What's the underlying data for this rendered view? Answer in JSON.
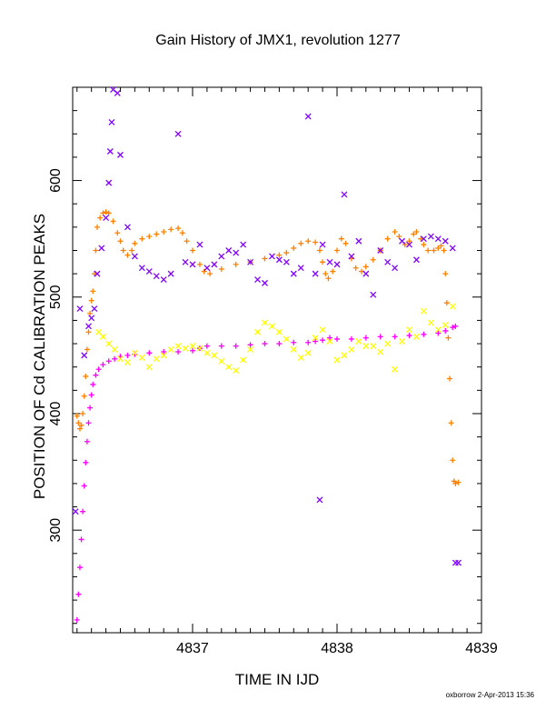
{
  "chart_data": {
    "type": "scatter",
    "title": "Gain History of JMX1, revolution 1277",
    "xlabel": "TIME IN IJD",
    "ylabel": "POSITION OF Cd CALIBRATION PEAKS",
    "xlim": [
      4836.17,
      4839.0
    ],
    "ylim": [
      212,
      680
    ],
    "x_ticks": [
      4837,
      4838,
      4839
    ],
    "y_ticks": [
      300,
      400,
      500,
      600
    ],
    "x_tick_labels": [
      "4837",
      "4838",
      "4839"
    ],
    "y_tick_labels": [
      "300",
      "400",
      "500",
      "600"
    ],
    "grid": false,
    "legend": "none",
    "series": [
      {
        "color": "#ff00ff",
        "marker": "plus",
        "points": [
          [
            4836.2,
            223
          ],
          [
            4836.21,
            245
          ],
          [
            4836.22,
            268
          ],
          [
            4836.23,
            292
          ],
          [
            4836.24,
            316
          ],
          [
            4836.25,
            338
          ],
          [
            4836.26,
            358
          ],
          [
            4836.27,
            376
          ],
          [
            4836.28,
            392
          ],
          [
            4836.29,
            405
          ],
          [
            4836.3,
            416
          ],
          [
            4836.31,
            425
          ],
          [
            4836.33,
            433
          ],
          [
            4836.35,
            438
          ],
          [
            4836.38,
            442
          ],
          [
            4836.42,
            445
          ],
          [
            4836.46,
            447
          ],
          [
            4836.5,
            449
          ],
          [
            4836.55,
            450
          ],
          [
            4836.6,
            451
          ],
          [
            4836.7,
            452
          ],
          [
            4836.8,
            453
          ],
          [
            4836.9,
            453
          ],
          [
            4837.0,
            454
          ],
          [
            4837.05,
            456
          ],
          [
            4837.1,
            458
          ],
          [
            4837.2,
            458
          ],
          [
            4837.3,
            458
          ],
          [
            4837.4,
            459
          ],
          [
            4837.5,
            460
          ],
          [
            4837.6,
            460
          ],
          [
            4837.7,
            461
          ],
          [
            4837.8,
            461
          ],
          [
            4837.85,
            462
          ],
          [
            4837.9,
            463
          ],
          [
            4837.95,
            465
          ],
          [
            4838.0,
            464
          ],
          [
            4838.1,
            464
          ],
          [
            4838.2,
            465
          ],
          [
            4838.3,
            466
          ],
          [
            4838.4,
            466
          ],
          [
            4838.5,
            467
          ],
          [
            4838.6,
            468
          ],
          [
            4838.7,
            469
          ],
          [
            4838.75,
            471
          ],
          [
            4838.8,
            474
          ],
          [
            4838.82,
            475
          ]
        ]
      },
      {
        "color": "#ff8000",
        "marker": "plus",
        "points": [
          [
            4836.2,
            398
          ],
          [
            4836.21,
            392
          ],
          [
            4836.22,
            387
          ],
          [
            4836.23,
            390
          ],
          [
            4836.24,
            400
          ],
          [
            4836.25,
            415
          ],
          [
            4836.26,
            432
          ],
          [
            4836.27,
            455
          ],
          [
            4836.28,
            470
          ],
          [
            4836.29,
            486
          ],
          [
            4836.3,
            497
          ],
          [
            4836.31,
            505
          ],
          [
            4836.32,
            520
          ],
          [
            4836.33,
            540
          ],
          [
            4836.34,
            560
          ],
          [
            4836.36,
            568
          ],
          [
            4836.38,
            572
          ],
          [
            4836.4,
            573
          ],
          [
            4836.42,
            572
          ],
          [
            4836.45,
            565
          ],
          [
            4836.48,
            555
          ],
          [
            4836.5,
            548
          ],
          [
            4836.52,
            540
          ],
          [
            4836.55,
            536
          ],
          [
            4836.58,
            540
          ],
          [
            4836.6,
            546
          ],
          [
            4836.65,
            550
          ],
          [
            4836.7,
            552
          ],
          [
            4836.75,
            554
          ],
          [
            4836.8,
            556
          ],
          [
            4836.85,
            558
          ],
          [
            4836.9,
            559
          ],
          [
            4836.93,
            555
          ],
          [
            4836.96,
            548
          ],
          [
            4837.0,
            540
          ],
          [
            4837.05,
            528
          ],
          [
            4837.08,
            522
          ],
          [
            4837.12,
            520
          ],
          [
            4837.2,
            524
          ],
          [
            4837.3,
            528
          ],
          [
            4837.4,
            530
          ],
          [
            4837.5,
            533
          ],
          [
            4837.6,
            536
          ],
          [
            4837.65,
            538
          ],
          [
            4837.7,
            542
          ],
          [
            4837.75,
            546
          ],
          [
            4837.8,
            548
          ],
          [
            4837.85,
            547
          ],
          [
            4837.88,
            540
          ],
          [
            4837.9,
            530
          ],
          [
            4837.92,
            520
          ],
          [
            4837.94,
            516
          ],
          [
            4837.97,
            522
          ],
          [
            4838.0,
            540
          ],
          [
            4838.03,
            550
          ],
          [
            4838.06,
            546
          ],
          [
            4838.1,
            533
          ],
          [
            4838.13,
            525
          ],
          [
            4838.17,
            522
          ],
          [
            4838.2,
            526
          ],
          [
            4838.25,
            532
          ],
          [
            4838.3,
            540
          ],
          [
            4838.35,
            550
          ],
          [
            4838.4,
            556
          ],
          [
            4838.43,
            552
          ],
          [
            4838.47,
            545
          ],
          [
            4838.5,
            548
          ],
          [
            4838.53,
            554
          ],
          [
            4838.55,
            556
          ],
          [
            4838.58,
            550
          ],
          [
            4838.6,
            545
          ],
          [
            4838.63,
            540
          ],
          [
            4838.67,
            540
          ],
          [
            4838.7,
            542
          ],
          [
            4838.72,
            544
          ],
          [
            4838.74,
            540
          ],
          [
            4838.75,
            520
          ],
          [
            4838.76,
            495
          ],
          [
            4838.77,
            465
          ],
          [
            4838.78,
            430
          ],
          [
            4838.79,
            392
          ],
          [
            4838.8,
            360
          ],
          [
            4838.81,
            342
          ],
          [
            4838.82,
            340
          ],
          [
            4838.84,
            341
          ]
        ]
      },
      {
        "color": "#ffff00",
        "marker": "cross",
        "points": [
          [
            4836.35,
            470
          ],
          [
            4836.38,
            466
          ],
          [
            4836.42,
            460
          ],
          [
            4836.46,
            455
          ],
          [
            4836.5,
            447
          ],
          [
            4836.55,
            444
          ],
          [
            4836.6,
            452
          ],
          [
            4836.65,
            448
          ],
          [
            4836.7,
            440
          ],
          [
            4836.75,
            447
          ],
          [
            4836.8,
            450
          ],
          [
            4836.85,
            455
          ],
          [
            4836.9,
            458
          ],
          [
            4836.95,
            456
          ],
          [
            4837.0,
            458
          ],
          [
            4837.05,
            456
          ],
          [
            4837.1,
            452
          ],
          [
            4837.15,
            450
          ],
          [
            4837.2,
            445
          ],
          [
            4837.25,
            440
          ],
          [
            4837.3,
            437
          ],
          [
            4837.35,
            446
          ],
          [
            4837.4,
            455
          ],
          [
            4837.45,
            470
          ],
          [
            4837.5,
            478
          ],
          [
            4837.55,
            475
          ],
          [
            4837.6,
            470
          ],
          [
            4837.65,
            464
          ],
          [
            4837.7,
            455
          ],
          [
            4837.75,
            448
          ],
          [
            4837.8,
            452
          ],
          [
            4837.85,
            465
          ],
          [
            4837.9,
            472
          ],
          [
            4837.95,
            462
          ],
          [
            4838.0,
            446
          ],
          [
            4838.05,
            450
          ],
          [
            4838.1,
            455
          ],
          [
            4838.15,
            462
          ],
          [
            4838.2,
            458
          ],
          [
            4838.25,
            458
          ],
          [
            4838.3,
            453
          ],
          [
            4838.35,
            460
          ],
          [
            4838.4,
            438
          ],
          [
            4838.45,
            462
          ],
          [
            4838.5,
            472
          ],
          [
            4838.55,
            466
          ],
          [
            4838.6,
            488
          ],
          [
            4838.65,
            478
          ],
          [
            4838.7,
            472
          ],
          [
            4838.75,
            476
          ],
          [
            4838.8,
            492
          ]
        ]
      },
      {
        "color": "#8000ff",
        "marker": "cross",
        "points": [
          [
            4836.19,
            316
          ],
          [
            4836.22,
            490
          ],
          [
            4836.25,
            450
          ],
          [
            4836.28,
            475
          ],
          [
            4836.3,
            482
          ],
          [
            4836.32,
            490
          ],
          [
            4836.34,
            520
          ],
          [
            4836.37,
            542
          ],
          [
            4836.4,
            568
          ],
          [
            4836.42,
            598
          ],
          [
            4836.43,
            625
          ],
          [
            4836.44,
            650
          ],
          [
            4836.45,
            678
          ],
          [
            4836.48,
            675
          ],
          [
            4836.5,
            622
          ],
          [
            4836.55,
            560
          ],
          [
            4836.6,
            535
          ],
          [
            4836.65,
            525
          ],
          [
            4836.7,
            522
          ],
          [
            4836.75,
            518
          ],
          [
            4836.8,
            515
          ],
          [
            4836.85,
            520
          ],
          [
            4836.9,
            640
          ],
          [
            4836.95,
            530
          ],
          [
            4837.0,
            528
          ],
          [
            4837.05,
            545
          ],
          [
            4837.1,
            525
          ],
          [
            4837.15,
            528
          ],
          [
            4837.2,
            535
          ],
          [
            4837.25,
            540
          ],
          [
            4837.3,
            538
          ],
          [
            4837.35,
            545
          ],
          [
            4837.4,
            530
          ],
          [
            4837.45,
            515
          ],
          [
            4837.5,
            512
          ],
          [
            4837.55,
            535
          ],
          [
            4837.6,
            532
          ],
          [
            4837.65,
            530
          ],
          [
            4837.7,
            520
          ],
          [
            4837.75,
            525
          ],
          [
            4837.8,
            655
          ],
          [
            4837.85,
            520
          ],
          [
            4837.88,
            326
          ],
          [
            4837.9,
            545
          ],
          [
            4837.95,
            530
          ],
          [
            4838.0,
            528
          ],
          [
            4838.05,
            588
          ],
          [
            4838.1,
            535
          ],
          [
            4838.15,
            548
          ],
          [
            4838.2,
            520
          ],
          [
            4838.25,
            502
          ],
          [
            4838.3,
            540
          ],
          [
            4838.35,
            530
          ],
          [
            4838.4,
            525
          ],
          [
            4838.45,
            548
          ],
          [
            4838.5,
            545
          ],
          [
            4838.55,
            532
          ],
          [
            4838.6,
            550
          ],
          [
            4838.65,
            552
          ],
          [
            4838.7,
            550
          ],
          [
            4838.75,
            548
          ],
          [
            4838.8,
            542
          ],
          [
            4838.82,
            272
          ],
          [
            4838.84,
            272
          ]
        ]
      }
    ]
  },
  "footer": "oxborrow  2-Apr-2013 15:36"
}
